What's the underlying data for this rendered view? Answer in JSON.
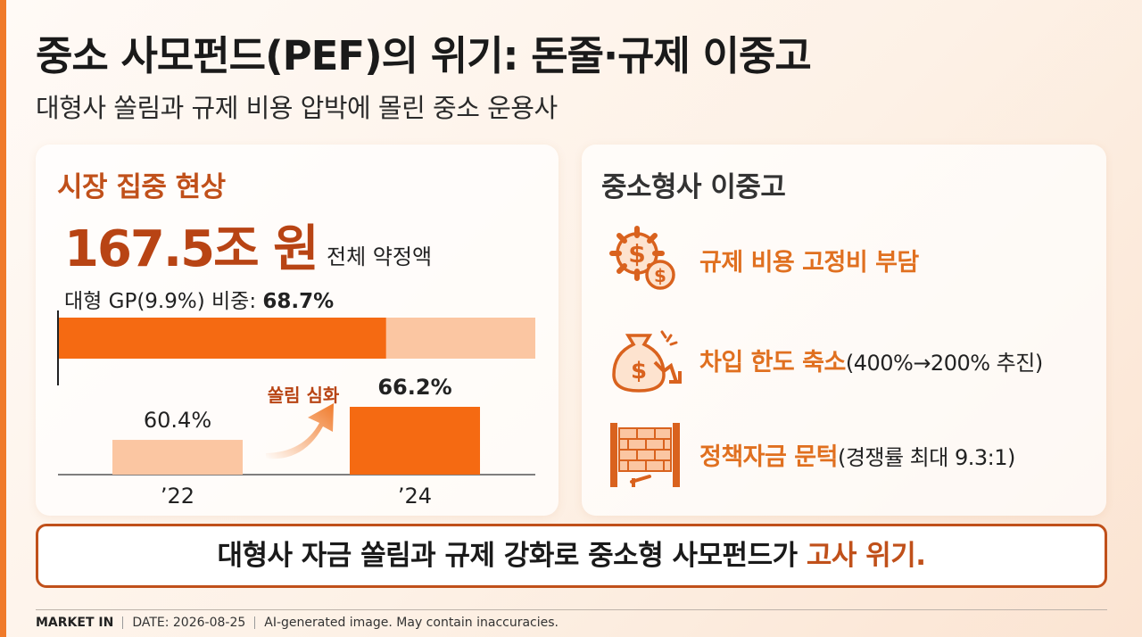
{
  "title": "중소 사모펀드(PEF)의 위기: 돈줄·규제 이중고",
  "subtitle": "대형사 쏠림과 규제 비용 압박에 몰린 중소 운용사",
  "left_panel": {
    "title": "시장 집중 현상",
    "big_number": "167.5조 원",
    "big_label": "전체 약정액",
    "share_label": "대형 GP(9.9%) 비중: ",
    "share_value": "68.7%",
    "arrow_label": "쏠림 심화"
  },
  "right_panel": {
    "title": "중소형사 이중고",
    "items": [
      {
        "icon": "gear-dollar-icon",
        "label": "규제 비용 고정비 부담",
        "note": ""
      },
      {
        "icon": "money-bag-down-icon",
        "label": "차입 한도 축소",
        "note": "(400%→200% 추진)"
      },
      {
        "icon": "brick-wall-icon",
        "label": "정책자금 문턱",
        "note": "(경쟁률 최대 9.3:1)"
      }
    ]
  },
  "conclusion": {
    "main": "대형사 자금 쏠림과 규제 강화로 중소형 사모펀드가 ",
    "highlight": "고사 위기."
  },
  "footer": {
    "brand": "MARKET IN",
    "date": "DATE: 2026-08-25",
    "disclaimer": "AI-generated image. May contain inaccuracies."
  },
  "colors": {
    "accent": "#f07a2a",
    "dark_accent": "#c0501a",
    "light_bar": "#f9c4a0"
  },
  "chart_data": [
    {
      "type": "bar",
      "orientation": "horizontal",
      "stacked": true,
      "series": [
        {
          "name": "대형 GP",
          "values": [
            68.7
          ]
        },
        {
          "name": "",
          "values": [
            31.3
          ]
        }
      ],
      "xlim": [
        0,
        100
      ]
    },
    {
      "type": "bar",
      "categories": [
        "’22",
        "’24"
      ],
      "values": [
        60.4,
        66.2
      ],
      "value_labels": [
        "60.4%",
        "66.2%"
      ]
    }
  ]
}
